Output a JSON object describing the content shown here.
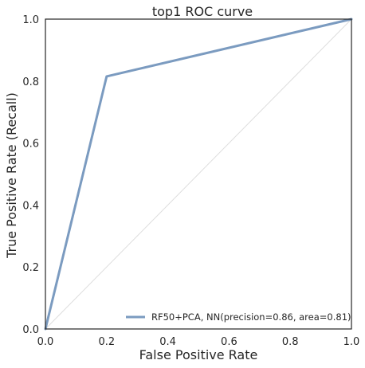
{
  "chart_data": {
    "type": "line",
    "title": "top1 ROC curve",
    "xlabel": "False Positive Rate",
    "ylabel": "True Positive Rate (Recall)",
    "xlim": [
      0.0,
      1.0
    ],
    "ylim": [
      0.0,
      1.0
    ],
    "xticks": [
      "0.0",
      "0.2",
      "0.4",
      "0.6",
      "0.8",
      "1.0"
    ],
    "yticks": [
      "0.0",
      "0.2",
      "0.4",
      "0.6",
      "0.8",
      "1.0"
    ],
    "grid": false,
    "legend_position": "lower right",
    "series": [
      {
        "name": "RF50+PCA, NN(precision=0.86, area=0.81)",
        "color": "#7b9bc0",
        "x": [
          0.0,
          0.2,
          1.0
        ],
        "y": [
          0.0,
          0.815,
          1.0
        ]
      }
    ],
    "reference_line": {
      "color": "#dddddd",
      "x": [
        0.0,
        1.0
      ],
      "y": [
        0.0,
        1.0
      ]
    }
  }
}
